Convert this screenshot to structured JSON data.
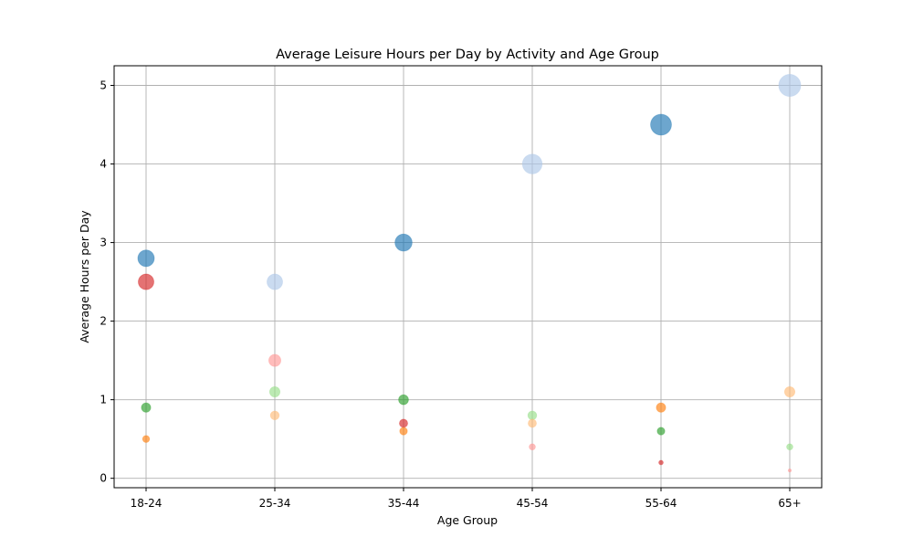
{
  "chart_data": {
    "type": "scatter",
    "title": "Average Leisure Hours per Day by Activity and Age Group",
    "xlabel": "Age Group",
    "ylabel": "Average Hours per Day",
    "categories": [
      "18-24",
      "25-34",
      "35-44",
      "45-54",
      "55-64",
      "65+"
    ],
    "yticks": [
      "0",
      "1",
      "2",
      "3",
      "4",
      "5"
    ],
    "ylim": [
      -0.12,
      5.25
    ],
    "grid": true,
    "legend": "none",
    "note": "Bubble size grows with value; series colours taken from the plot",
    "series": [
      {
        "color": "#1f77b4",
        "alpha": 0.65,
        "values": [
          2.8,
          null,
          3.0,
          null,
          4.5,
          null
        ]
      },
      {
        "color": "#aec7e8",
        "alpha": 0.65,
        "values": [
          null,
          2.5,
          null,
          4.0,
          null,
          5.0
        ]
      },
      {
        "color": "#d62728",
        "alpha": 0.65,
        "values": [
          2.5,
          null,
          0.7,
          null,
          0.2,
          null
        ]
      },
      {
        "color": "#ff9896",
        "alpha": 0.65,
        "values": [
          null,
          1.5,
          null,
          0.4,
          null,
          0.1
        ]
      },
      {
        "color": "#2ca02c",
        "alpha": 0.65,
        "values": [
          0.9,
          null,
          1.0,
          null,
          0.6,
          null
        ]
      },
      {
        "color": "#98df8a",
        "alpha": 0.65,
        "values": [
          null,
          1.1,
          null,
          0.8,
          null,
          0.4
        ]
      },
      {
        "color": "#ff7f0e",
        "alpha": 0.65,
        "values": [
          0.5,
          null,
          0.6,
          null,
          0.9,
          null
        ]
      },
      {
        "color": "#ffbb78",
        "alpha": 0.65,
        "values": [
          null,
          0.8,
          null,
          0.7,
          null,
          1.1
        ]
      }
    ]
  }
}
